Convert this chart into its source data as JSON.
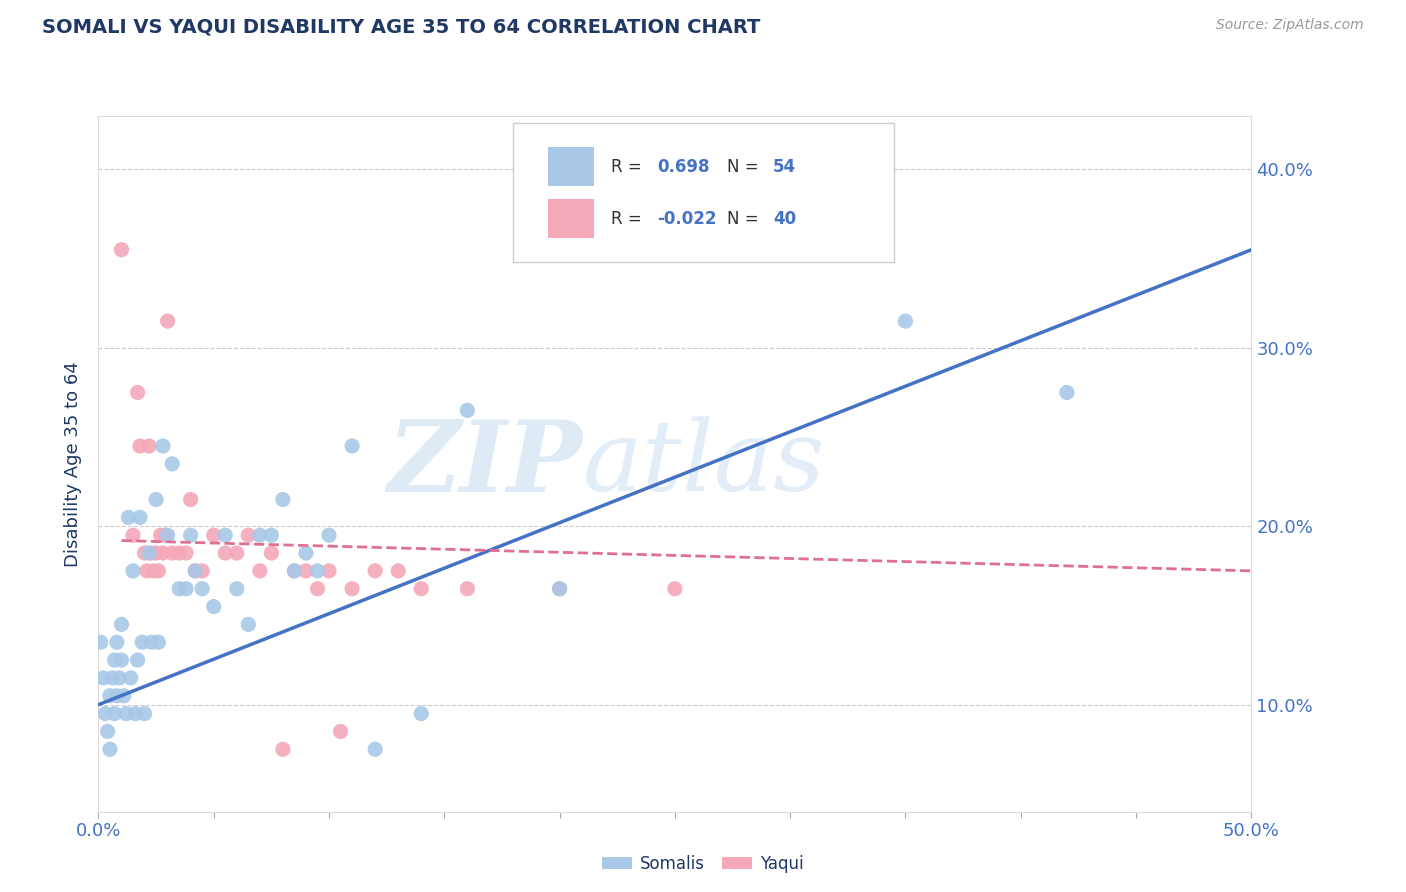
{
  "title": "SOMALI VS YAQUI DISABILITY AGE 35 TO 64 CORRELATION CHART",
  "source": "Source: ZipAtlas.com",
  "ylabel": "Disability Age 35 to 64",
  "xlim": [
    0.0,
    0.5
  ],
  "ylim": [
    0.04,
    0.43
  ],
  "xticks": [
    0.0,
    0.05,
    0.1,
    0.15,
    0.2,
    0.25,
    0.3,
    0.35,
    0.4,
    0.45,
    0.5
  ],
  "yticks": [
    0.1,
    0.2,
    0.3,
    0.4
  ],
  "yticklabels": [
    "10.0%",
    "20.0%",
    "30.0%",
    "40.0%"
  ],
  "somali_color": "#a8c8e8",
  "yaqui_color": "#f4a8b8",
  "somali_line_color": "#4472c4",
  "yaqui_line_color": "#e07090",
  "R_somali": "0.698",
  "N_somali": "54",
  "R_yaqui": "-0.022",
  "N_yaqui": "40",
  "watermark_zip": "ZIP",
  "watermark_atlas": "atlas",
  "background_color": "#ffffff",
  "grid_color": "#cccccc",
  "title_color": "#1f3864",
  "axis_label_color": "#4472c4",
  "legend_text_color_label": "#333333",
  "legend_text_color_value": "#4472c4",
  "somali_scatter": [
    [
      0.001,
      0.135
    ],
    [
      0.002,
      0.115
    ],
    [
      0.003,
      0.095
    ],
    [
      0.004,
      0.085
    ],
    [
      0.005,
      0.075
    ],
    [
      0.005,
      0.105
    ],
    [
      0.006,
      0.115
    ],
    [
      0.007,
      0.125
    ],
    [
      0.007,
      0.095
    ],
    [
      0.008,
      0.105
    ],
    [
      0.008,
      0.135
    ],
    [
      0.009,
      0.115
    ],
    [
      0.01,
      0.125
    ],
    [
      0.01,
      0.145
    ],
    [
      0.011,
      0.105
    ],
    [
      0.012,
      0.095
    ],
    [
      0.013,
      0.205
    ],
    [
      0.014,
      0.115
    ],
    [
      0.015,
      0.175
    ],
    [
      0.016,
      0.095
    ],
    [
      0.017,
      0.125
    ],
    [
      0.018,
      0.205
    ],
    [
      0.019,
      0.135
    ],
    [
      0.02,
      0.095
    ],
    [
      0.022,
      0.185
    ],
    [
      0.023,
      0.135
    ],
    [
      0.025,
      0.215
    ],
    [
      0.026,
      0.135
    ],
    [
      0.028,
      0.245
    ],
    [
      0.03,
      0.195
    ],
    [
      0.032,
      0.235
    ],
    [
      0.035,
      0.165
    ],
    [
      0.038,
      0.165
    ],
    [
      0.04,
      0.195
    ],
    [
      0.042,
      0.175
    ],
    [
      0.045,
      0.165
    ],
    [
      0.05,
      0.155
    ],
    [
      0.055,
      0.195
    ],
    [
      0.06,
      0.165
    ],
    [
      0.065,
      0.145
    ],
    [
      0.07,
      0.195
    ],
    [
      0.075,
      0.195
    ],
    [
      0.08,
      0.215
    ],
    [
      0.085,
      0.175
    ],
    [
      0.09,
      0.185
    ],
    [
      0.095,
      0.175
    ],
    [
      0.1,
      0.195
    ],
    [
      0.11,
      0.245
    ],
    [
      0.12,
      0.075
    ],
    [
      0.14,
      0.095
    ],
    [
      0.16,
      0.265
    ],
    [
      0.2,
      0.165
    ],
    [
      0.35,
      0.315
    ],
    [
      0.42,
      0.275
    ]
  ],
  "yaqui_scatter": [
    [
      0.01,
      0.355
    ],
    [
      0.015,
      0.195
    ],
    [
      0.017,
      0.275
    ],
    [
      0.018,
      0.245
    ],
    [
      0.02,
      0.185
    ],
    [
      0.021,
      0.175
    ],
    [
      0.022,
      0.245
    ],
    [
      0.023,
      0.185
    ],
    [
      0.024,
      0.175
    ],
    [
      0.025,
      0.185
    ],
    [
      0.026,
      0.175
    ],
    [
      0.027,
      0.195
    ],
    [
      0.028,
      0.185
    ],
    [
      0.029,
      0.195
    ],
    [
      0.03,
      0.315
    ],
    [
      0.032,
      0.185
    ],
    [
      0.035,
      0.185
    ],
    [
      0.038,
      0.185
    ],
    [
      0.04,
      0.215
    ],
    [
      0.042,
      0.175
    ],
    [
      0.045,
      0.175
    ],
    [
      0.05,
      0.195
    ],
    [
      0.055,
      0.185
    ],
    [
      0.06,
      0.185
    ],
    [
      0.065,
      0.195
    ],
    [
      0.07,
      0.175
    ],
    [
      0.075,
      0.185
    ],
    [
      0.08,
      0.075
    ],
    [
      0.085,
      0.175
    ],
    [
      0.09,
      0.175
    ],
    [
      0.095,
      0.165
    ],
    [
      0.1,
      0.175
    ],
    [
      0.105,
      0.085
    ],
    [
      0.11,
      0.165
    ],
    [
      0.12,
      0.175
    ],
    [
      0.13,
      0.175
    ],
    [
      0.14,
      0.165
    ],
    [
      0.16,
      0.165
    ],
    [
      0.2,
      0.165
    ],
    [
      0.25,
      0.165
    ]
  ],
  "somali_trend_x": [
    0.0,
    0.5
  ],
  "somali_trend_y": [
    0.1,
    0.355
  ],
  "yaqui_trend_x": [
    0.01,
    0.5
  ],
  "yaqui_trend_y": [
    0.192,
    0.175
  ]
}
